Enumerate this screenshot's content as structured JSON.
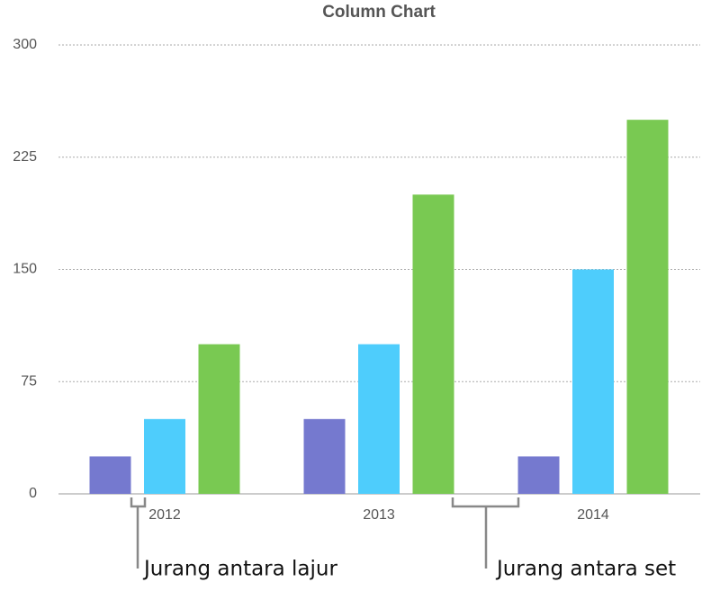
{
  "chart_data": {
    "type": "bar",
    "title": "Column Chart",
    "categories": [
      "2012",
      "2013",
      "2014"
    ],
    "series": [
      {
        "color": "#7579cf",
        "values": [
          25,
          50,
          25
        ]
      },
      {
        "color": "#4ecdfc",
        "values": [
          50,
          100,
          150
        ]
      },
      {
        "color": "#79c952",
        "values": [
          100,
          200,
          250
        ]
      }
    ],
    "ylim": [
      0,
      300
    ],
    "yticks": [
      0,
      75,
      150,
      225,
      300
    ],
    "grid": true,
    "annotations": [
      "Jurang antara lajur",
      "Jurang antara set"
    ]
  }
}
